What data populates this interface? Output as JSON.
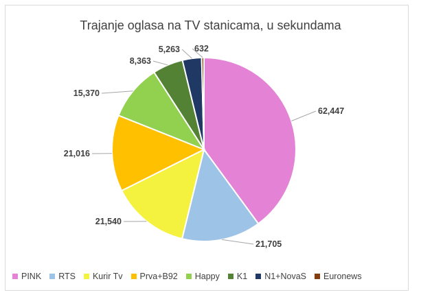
{
  "chart_data": {
    "type": "pie",
    "title": "Trajanje oglasa na TV stanicama, u sekundama",
    "categories": [
      "PINK",
      "RTS",
      "Kurir Tv",
      "Prva+B92",
      "Happy",
      "K1",
      "N1+NovaS",
      "Euronews"
    ],
    "values": [
      62447,
      21705,
      21540,
      21016,
      15370,
      8363,
      5263,
      632
    ],
    "value_labels": [
      "62,447",
      "21,705",
      "21,540",
      "21,016",
      "15,370",
      "8,363",
      "5,263",
      "632"
    ],
    "colors": [
      "#e483d6",
      "#9dc3e6",
      "#f4f23f",
      "#ffc000",
      "#92d050",
      "#548235",
      "#203864",
      "#843c0c"
    ],
    "legend_position": "bottom"
  }
}
